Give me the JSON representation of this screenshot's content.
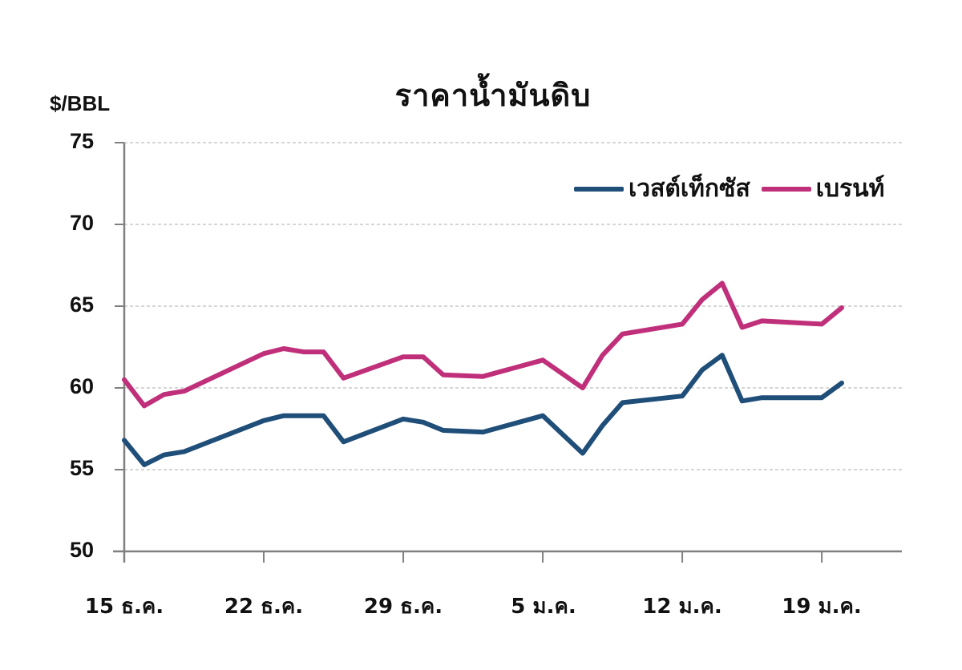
{
  "chart_data": {
    "type": "line",
    "title": "ราคาน้ำมันดิบ",
    "xlabel": "",
    "ylabel": "$/BBL",
    "ylim": [
      50,
      75
    ],
    "yticks": [
      50,
      55,
      60,
      65,
      70,
      75
    ],
    "grid": true,
    "legend_position": "top-right",
    "x_tick_labels": [
      "15 ธ.ค.",
      "22 ธ.ค.",
      "29 ธ.ค.",
      "5 ม.ค.",
      "12 ม.ค.",
      "19 ม.ค."
    ],
    "x_positions_days": [
      0,
      1,
      2,
      3,
      7,
      8,
      9,
      10,
      11,
      14,
      15,
      16,
      18,
      21,
      23,
      24,
      25,
      28,
      29,
      30,
      31,
      32,
      35,
      36
    ],
    "series": [
      {
        "name": "เวสต์เท็กซัส",
        "color": "#1f4e79",
        "values": [
          56.8,
          55.3,
          55.9,
          56.1,
          58.0,
          58.3,
          58.3,
          58.3,
          56.7,
          58.1,
          57.9,
          57.4,
          57.3,
          58.3,
          56.0,
          57.7,
          59.1,
          59.5,
          61.1,
          62.0,
          59.2,
          59.4,
          59.4,
          60.3
        ]
      },
      {
        "name": "เบรนท์",
        "color": "#c0307a",
        "values": [
          60.5,
          58.9,
          59.6,
          59.8,
          62.1,
          62.4,
          62.2,
          62.2,
          60.6,
          61.9,
          61.9,
          60.8,
          60.7,
          61.7,
          60.0,
          62.0,
          63.3,
          63.9,
          65.4,
          66.4,
          63.7,
          64.1,
          63.9,
          64.9
        ]
      }
    ]
  },
  "labels": {
    "title": "ราคาน้ำมันดิบ",
    "y_unit": "$/BBL",
    "y_ticks": [
      "75",
      "70",
      "65",
      "60",
      "55",
      "50"
    ],
    "x_ticks": [
      "15 ธ.ค.",
      "22 ธ.ค.",
      "29 ธ.ค.",
      "5 ม.ค.",
      "12 ม.ค.",
      "19 ม.ค."
    ],
    "legend": [
      "เวสต์เท็กซัส",
      "เบรนท์"
    ]
  },
  "colors": {
    "wti": "#1f4e79",
    "brent": "#c0307a",
    "axis": "#808080",
    "grid": "#c8c8c8"
  }
}
